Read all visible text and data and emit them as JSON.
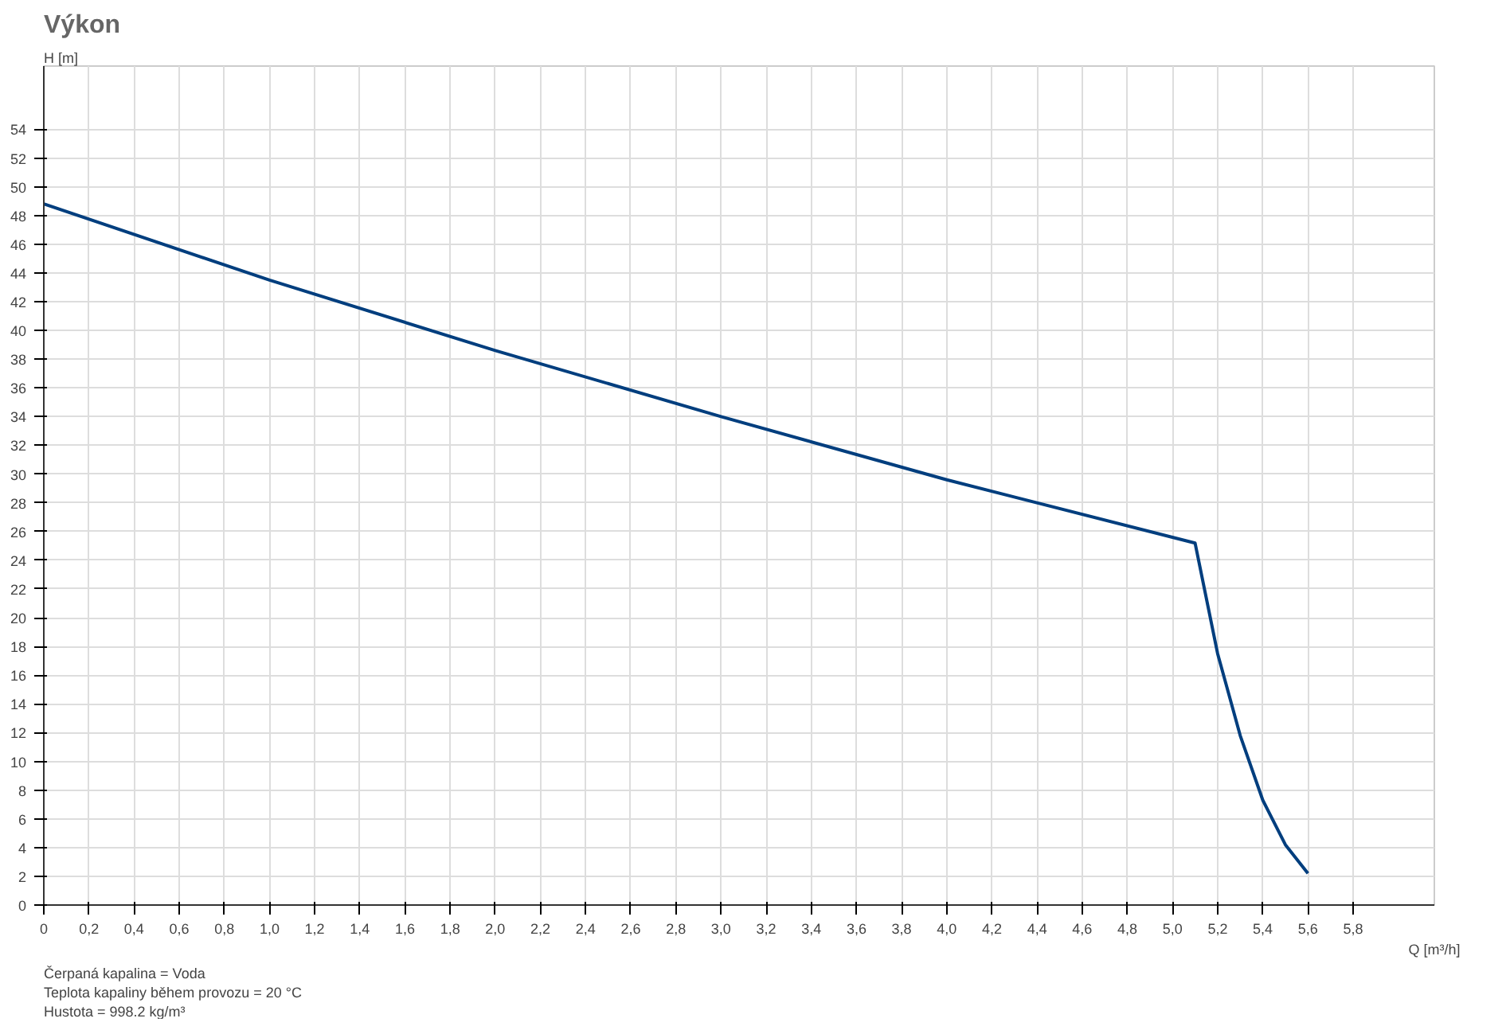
{
  "chart_data": {
    "type": "line",
    "title": "Výkon",
    "xlabel": "Q [m³/h]",
    "ylabel": "H [m]",
    "x": [
      0,
      1.0,
      2.0,
      3.0,
      4.0,
      5.1,
      5.2,
      5.3,
      5.4,
      5.5,
      5.6
    ],
    "series": [
      {
        "color": "#003e7e",
        "values": [
          48.8,
          43.5,
          38.6,
          34.0,
          29.6,
          25.2,
          17.5,
          11.8,
          7.3,
          4.2,
          2.2
        ]
      }
    ],
    "xlim": [
      0,
      6.16
    ],
    "ylim": [
      0,
      58.4
    ],
    "xticks": [
      0,
      {
        "value": 0.2,
        "label": "0,2"
      },
      {
        "value": 0.4,
        "label": "0,4"
      },
      {
        "value": 0.6,
        "label": "0,6"
      },
      {
        "value": 0.8,
        "label": "0,8"
      },
      {
        "value": 1.0,
        "label": "1,0"
      },
      {
        "value": 1.2,
        "label": "1,2"
      },
      {
        "value": 1.4,
        "label": "1,4"
      },
      {
        "value": 1.6,
        "label": "1,6"
      },
      {
        "value": 1.8,
        "label": "1,8"
      },
      {
        "value": 2.0,
        "label": "2,0"
      },
      {
        "value": 2.2,
        "label": "2,2"
      },
      {
        "value": 2.4,
        "label": "2,4"
      },
      {
        "value": 2.6,
        "label": "2,6"
      },
      {
        "value": 2.8,
        "label": "2,8"
      },
      {
        "value": 3.0,
        "label": "3,0"
      },
      {
        "value": 3.2,
        "label": "3,2"
      },
      {
        "value": 3.4,
        "label": "3,4"
      },
      {
        "value": 3.6,
        "label": "3,6"
      },
      {
        "value": 3.8,
        "label": "3,8"
      },
      {
        "value": 4.0,
        "label": "4,0"
      },
      {
        "value": 4.2,
        "label": "4,2"
      },
      {
        "value": 4.4,
        "label": "4,4"
      },
      {
        "value": 4.6,
        "label": "4,6"
      },
      {
        "value": 4.8,
        "label": "4,8"
      },
      {
        "value": 5.0,
        "label": "5,0"
      },
      {
        "value": 5.2,
        "label": "5,2"
      },
      {
        "value": 5.4,
        "label": "5,4"
      },
      {
        "value": 5.6,
        "label": "5,6"
      },
      {
        "value": 5.8,
        "label": "5,8"
      }
    ],
    "yticks": [
      0,
      2,
      4,
      6,
      8,
      10,
      12,
      14,
      16,
      18,
      20,
      22,
      24,
      26,
      28,
      30,
      32,
      34,
      36,
      38,
      40,
      42,
      44,
      46,
      48,
      50,
      52,
      54
    ],
    "grid": true,
    "marker": "none",
    "line_style": "solid",
    "annotations": [
      "Čerpaná kapalina = Voda",
      "Teplota kapaliny během provozu = 20 °C",
      "Hustota = 998.2 kg/m³"
    ]
  }
}
